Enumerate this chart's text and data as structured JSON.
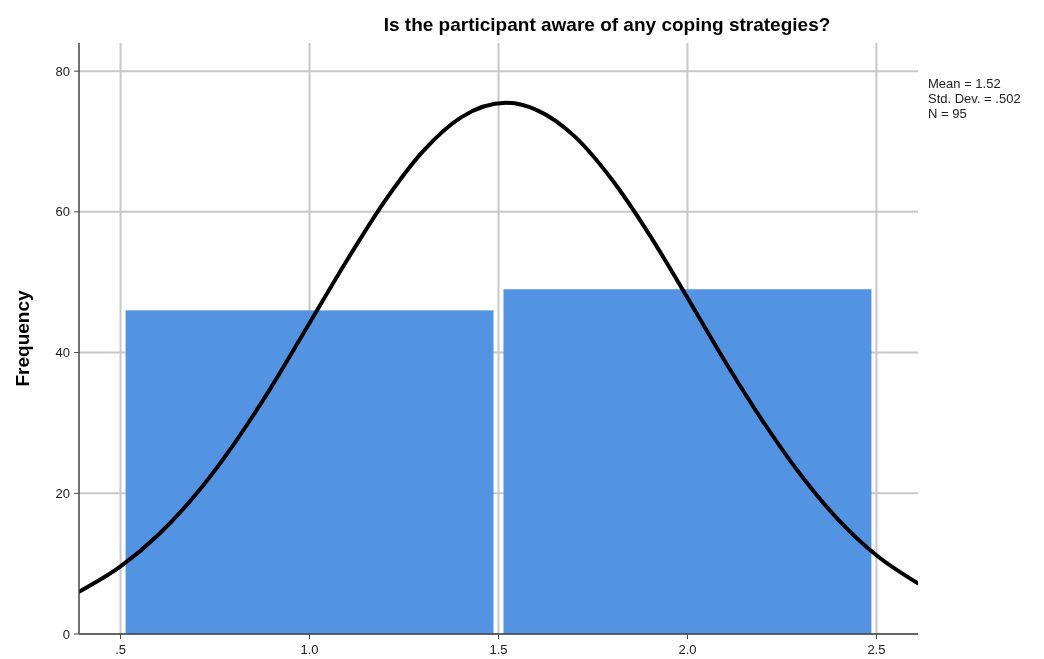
{
  "chart_data": {
    "type": "histogram",
    "title": "Is the participant aware of any coping strategies?",
    "ylabel": "Frequency",
    "bins": [
      0.5,
      1.5,
      2.5
    ],
    "values": [
      46,
      49
    ],
    "color": "#5294e2",
    "series": [
      {
        "type": "line",
        "color": "#000000",
        "x": [
          0.39,
          0.5,
          0.6,
          0.7,
          0.8,
          0.9,
          1.0,
          1.1,
          1.2,
          1.3,
          1.4,
          1.52,
          1.6,
          1.7,
          1.8,
          1.9,
          2.0,
          2.1,
          2.2,
          2.3,
          2.4,
          2.5,
          2.61
        ],
        "values": [
          6.0,
          9.6,
          14.1,
          19.9,
          27.0,
          35.2,
          44.2,
          53.2,
          61.6,
          68.6,
          73.4,
          75.5,
          74.5,
          70.8,
          64.6,
          56.7,
          47.8,
          38.7,
          30.2,
          22.6,
          16.2,
          11.2,
          7.2
        ]
      }
    ],
    "xlim": [
      0.39,
      2.61
    ],
    "xticks": [
      {
        "value": 0.5,
        "label": ".5"
      },
      {
        "value": 1,
        "label": "1.0"
      },
      {
        "value": 1.5,
        "label": "1.5"
      },
      {
        "value": 2,
        "label": "2.0"
      },
      {
        "value": 2.5,
        "label": "2.5"
      }
    ],
    "ylim": [
      0,
      84
    ],
    "yticks": [
      0,
      20,
      40,
      60,
      80
    ],
    "grid": true,
    "annotations": [
      "Mean = 1.52",
      "Std. Dev. = .502",
      "N = 95"
    ]
  }
}
